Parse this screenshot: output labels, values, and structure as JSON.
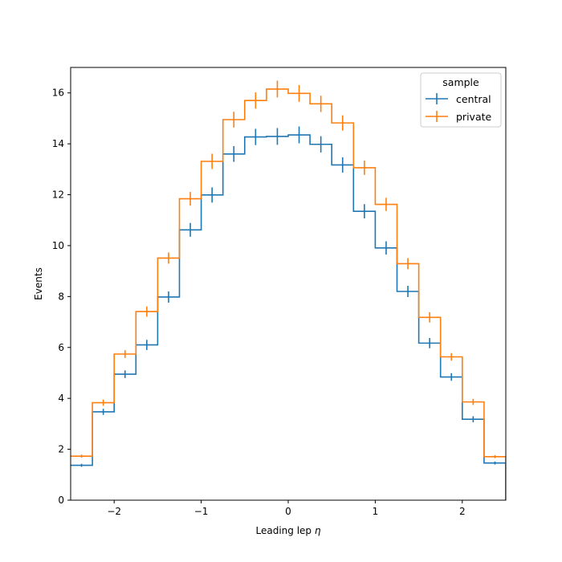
{
  "chart_data": {
    "type": "histogram-step",
    "xlabel_main": "Leading lep ",
    "xlabel_symbol": "η",
    "ylabel": "Events",
    "xlim": [
      -2.5,
      2.5
    ],
    "ylim": [
      0,
      17
    ],
    "x_ticks": [
      -2,
      -1,
      0,
      1,
      2
    ],
    "x_tick_labels": [
      "−2",
      "−1",
      "0",
      "1",
      "2"
    ],
    "y_ticks": [
      0,
      2,
      4,
      6,
      8,
      10,
      12,
      14,
      16
    ],
    "y_tick_labels": [
      "0",
      "2",
      "4",
      "6",
      "8",
      "10",
      "12",
      "14",
      "16"
    ],
    "bin_edges": [
      -2.5,
      -2.25,
      -2.0,
      -1.75,
      -1.5,
      -1.25,
      -1.0,
      -0.75,
      -0.5,
      -0.25,
      0.0,
      0.25,
      0.5,
      0.75,
      1.0,
      1.25,
      1.5,
      1.75,
      2.0,
      2.25,
      2.5
    ],
    "legend": {
      "title": "sample",
      "position": "top-right"
    },
    "grid": false,
    "series": [
      {
        "name": "central",
        "color": "#1f77b4",
        "values": [
          1.37,
          3.47,
          4.95,
          6.1,
          7.98,
          10.62,
          11.99,
          13.6,
          14.27,
          14.29,
          14.35,
          13.98,
          13.17,
          11.35,
          9.91,
          8.2,
          6.17,
          4.84,
          3.18,
          1.46
        ],
        "errors": [
          0.06,
          0.12,
          0.15,
          0.2,
          0.22,
          0.27,
          0.3,
          0.31,
          0.32,
          0.33,
          0.33,
          0.32,
          0.3,
          0.28,
          0.26,
          0.22,
          0.2,
          0.15,
          0.12,
          0.06
        ]
      },
      {
        "name": "private",
        "color": "#ff7f0e",
        "values": [
          1.73,
          3.83,
          5.74,
          7.41,
          9.51,
          11.84,
          13.31,
          14.95,
          15.7,
          16.15,
          15.98,
          15.57,
          14.82,
          13.06,
          11.62,
          9.29,
          7.18,
          5.63,
          3.86,
          1.71
        ],
        "errors": [
          0.06,
          0.12,
          0.15,
          0.2,
          0.22,
          0.27,
          0.3,
          0.31,
          0.32,
          0.33,
          0.33,
          0.32,
          0.3,
          0.28,
          0.26,
          0.22,
          0.2,
          0.15,
          0.12,
          0.06
        ]
      }
    ]
  }
}
